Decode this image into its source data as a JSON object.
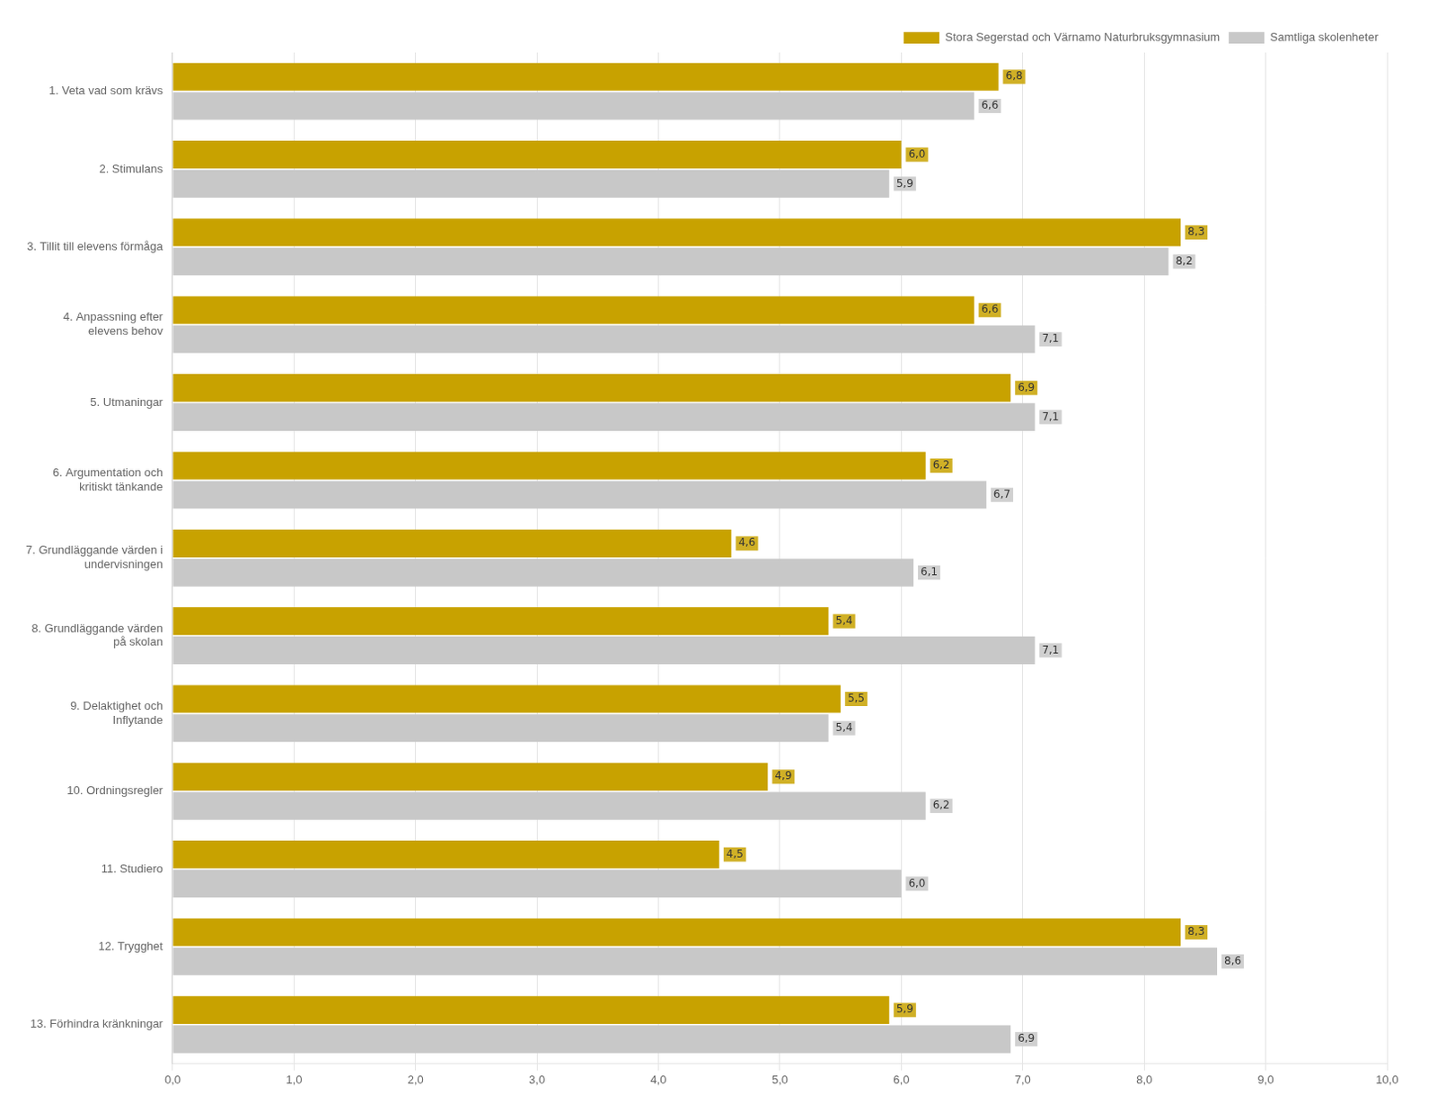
{
  "chart_data": {
    "type": "bar",
    "orientation": "horizontal",
    "categories": [
      "1. Veta vad som krävs",
      "2. Stimulans",
      "3. Tillit till elevens förmåga",
      "4. Anpassning efter\nelevens behov",
      "5. Utmaningar",
      "6. Argumentation och\nkritiskt tänkande",
      "7. Grundläggande värden i\nundervisningen",
      "8. Grundläggande värden\npå skolan",
      "9. Delaktighet och\nInflytande",
      "10. Ordningsregler",
      "11. Studiero",
      "12. Trygghet",
      "13. Förhindra kränkningar"
    ],
    "series": [
      {
        "name": "Stora Segerstad och Värnamo Naturbruksgymnasium",
        "color": "#C8A200",
        "values": [
          6.8,
          6.0,
          8.3,
          6.6,
          6.9,
          6.2,
          4.6,
          5.4,
          5.5,
          4.9,
          4.5,
          8.3,
          5.9
        ],
        "value_labels": [
          "6,8",
          "6,0",
          "8,3",
          "6,6",
          "6,9",
          "6,2",
          "4,6",
          "5,4",
          "5,5",
          "4,9",
          "4,5",
          "8,3",
          "5,9"
        ]
      },
      {
        "name": "Samtliga skolenheter",
        "color": "#C8C8C8",
        "values": [
          6.6,
          5.9,
          8.2,
          7.1,
          7.1,
          6.7,
          6.1,
          7.1,
          5.4,
          6.2,
          6.0,
          8.6,
          6.9
        ],
        "value_labels": [
          "6,6",
          "5,9",
          "8,2",
          "7,1",
          "7,1",
          "6,7",
          "6,1",
          "7,1",
          "5,4",
          "6,2",
          "6,0",
          "8,6",
          "6,9"
        ]
      }
    ],
    "xlim": [
      0,
      10
    ],
    "xticks": [
      {
        "value": 0,
        "label": "0,0"
      },
      {
        "value": 1,
        "label": "1,0"
      },
      {
        "value": 2,
        "label": "2,0"
      },
      {
        "value": 3,
        "label": "3,0"
      },
      {
        "value": 4,
        "label": "4,0"
      },
      {
        "value": 5,
        "label": "5,0"
      },
      {
        "value": 6,
        "label": "6,0"
      },
      {
        "value": 7,
        "label": "7,0"
      },
      {
        "value": 8,
        "label": "8,0"
      },
      {
        "value": 9,
        "label": "9,0"
      },
      {
        "value": 10,
        "label": "10,0"
      }
    ],
    "grid": true,
    "legend": "upper right",
    "data_labels": true
  }
}
